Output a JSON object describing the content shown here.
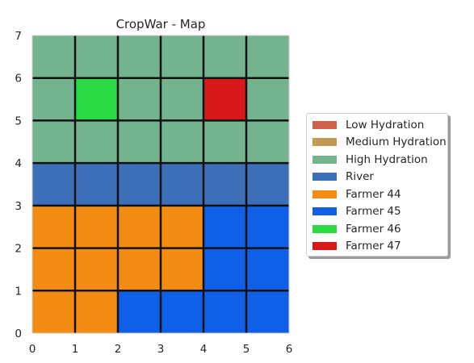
{
  "chart_data": {
    "type": "heatmap",
    "title": "CropWar - Map",
    "xlabel": "",
    "ylabel": "",
    "xlim": [
      0,
      6
    ],
    "ylim": [
      0,
      7
    ],
    "x_ticks": [
      "0",
      "1",
      "2",
      "3",
      "4",
      "5",
      "6"
    ],
    "y_ticks": [
      "0",
      "1",
      "2",
      "3",
      "4",
      "5",
      "6",
      "7"
    ],
    "grid": true,
    "legend_position": "right",
    "categories": [
      {
        "id": "low_hydration",
        "label": "Low Hydration",
        "color": "#d1604d"
      },
      {
        "id": "medium_hydration",
        "label": "Medium Hydration",
        "color": "#c39a52"
      },
      {
        "id": "high_hydration",
        "label": "High Hydration",
        "color": "#73b38e"
      },
      {
        "id": "river",
        "label": "River",
        "color": "#3d6fb8"
      },
      {
        "id": "farmer_44",
        "label": "Farmer 44",
        "color": "#f28c13"
      },
      {
        "id": "farmer_45",
        "label": "Farmer 45",
        "color": "#0f5fe7"
      },
      {
        "id": "farmer_46",
        "label": "Farmer 46",
        "color": "#2bd943"
      },
      {
        "id": "farmer_47",
        "label": "Farmer 47",
        "color": "#d7191c"
      }
    ],
    "rows_from_top": [
      [
        "high_hydration",
        "high_hydration",
        "high_hydration",
        "high_hydration",
        "high_hydration",
        "high_hydration"
      ],
      [
        "high_hydration",
        "farmer_46",
        "high_hydration",
        "high_hydration",
        "farmer_47",
        "high_hydration"
      ],
      [
        "high_hydration",
        "high_hydration",
        "high_hydration",
        "high_hydration",
        "high_hydration",
        "high_hydration"
      ],
      [
        "river",
        "river",
        "river",
        "river",
        "river",
        "river"
      ],
      [
        "farmer_44",
        "farmer_44",
        "farmer_44",
        "farmer_44",
        "farmer_45",
        "farmer_45"
      ],
      [
        "farmer_44",
        "farmer_44",
        "farmer_44",
        "farmer_44",
        "farmer_45",
        "farmer_45"
      ],
      [
        "farmer_44",
        "farmer_44",
        "farmer_45",
        "farmer_45",
        "farmer_45",
        "farmer_45"
      ]
    ]
  }
}
